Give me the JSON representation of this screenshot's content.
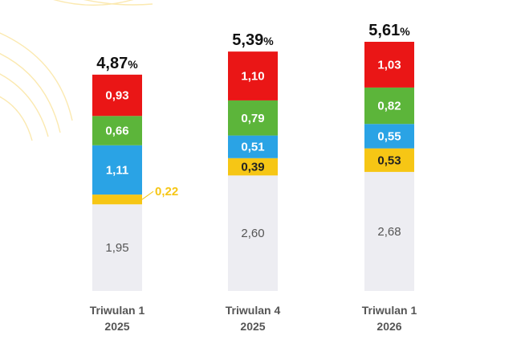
{
  "chart_data": {
    "type": "bar",
    "stacked": true,
    "categories": [
      [
        "Triwulan 1",
        "2025"
      ],
      [
        "Triwulan 4",
        "2025"
      ],
      [
        "Triwulan 1",
        "2026"
      ]
    ],
    "series": [
      {
        "values": [
          1.95,
          2.6,
          2.68
        ],
        "labels": [
          "1,95",
          "2,60",
          "2,68"
        ],
        "color": "#ededf2"
      },
      {
        "values": [
          0.22,
          0.39,
          0.53
        ],
        "labels": [
          "0,22",
          "0,39",
          "0,53"
        ],
        "color": "#f6c615"
      },
      {
        "values": [
          1.11,
          0.51,
          0.55
        ],
        "labels": [
          "1,11",
          "0,51",
          "0,55"
        ],
        "color": "#2aa3e5"
      },
      {
        "values": [
          0.66,
          0.79,
          0.82
        ],
        "labels": [
          "0,66",
          "0,79",
          "0,82"
        ],
        "color": "#5cb53a"
      },
      {
        "values": [
          0.93,
          1.1,
          1.03
        ],
        "labels": [
          "0,93",
          "1,10",
          "1,03"
        ],
        "color": "#ea1616"
      }
    ],
    "totals": [
      4.87,
      5.39,
      5.61
    ],
    "total_labels": [
      "4,87",
      "5,39",
      "5,61"
    ],
    "total_unit": "%",
    "ylim": [
      0,
      5.61
    ],
    "grid": false,
    "legend": "none",
    "callout_color": "#f6c615"
  }
}
